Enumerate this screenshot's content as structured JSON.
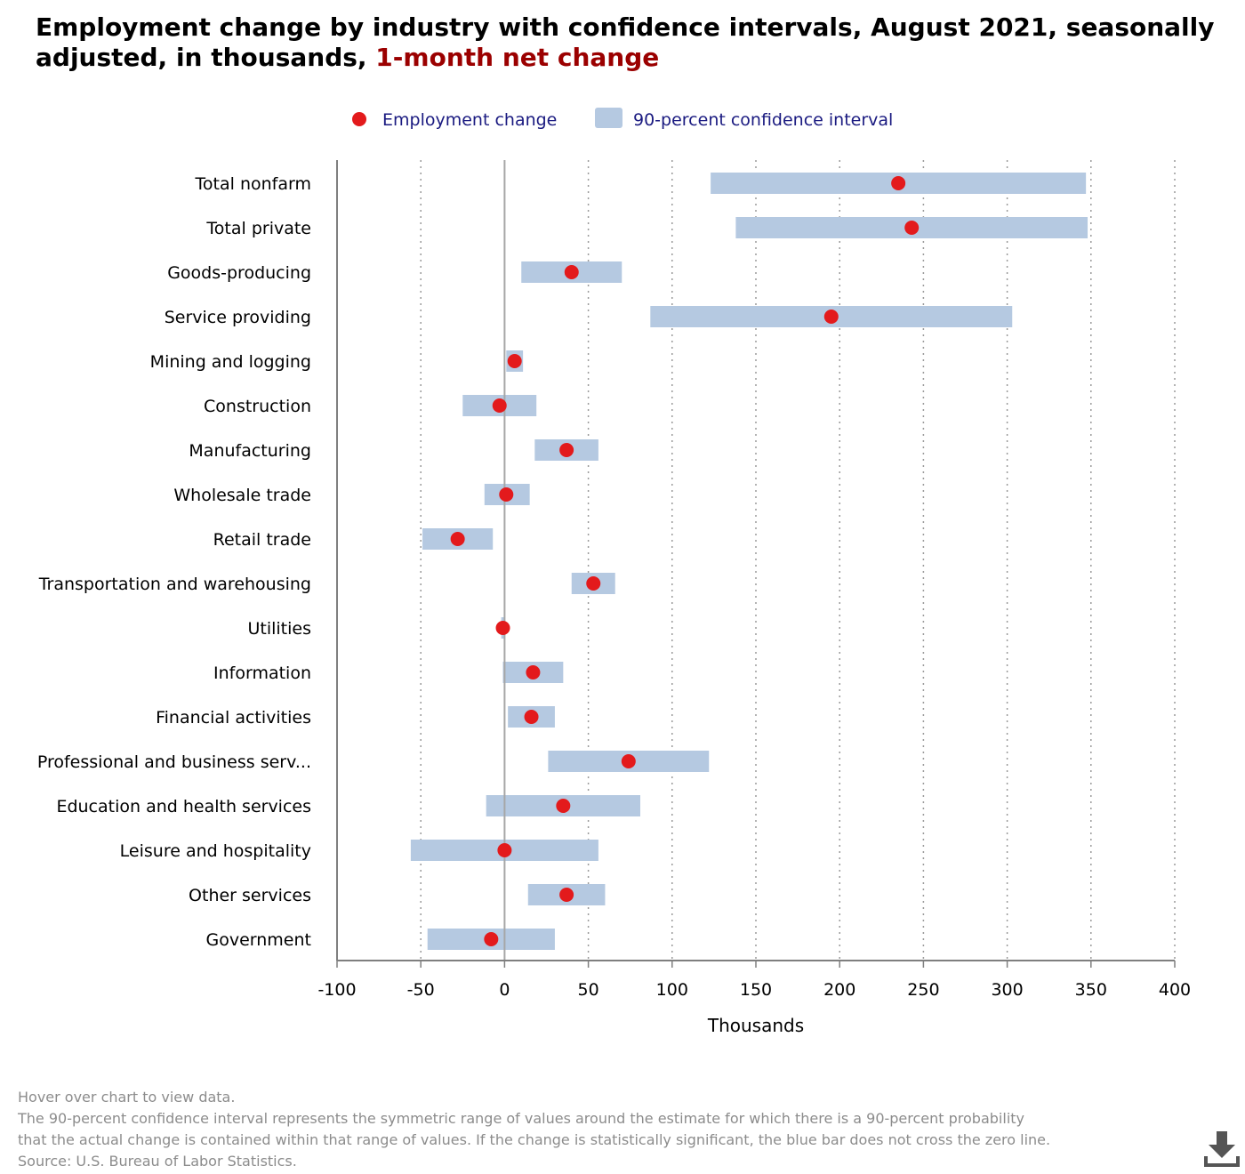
{
  "title": {
    "main": "Employment change by industry with confidence intervals, August 2021, seasonally adjusted, in thousands, ",
    "highlight": "1-month net change"
  },
  "colors": {
    "point": "#e31a1c",
    "interval": "#b5c9e1",
    "legend_text": "#1a1a80",
    "title_highlight": "#9b0000",
    "footer_text": "#8c8c8c"
  },
  "chart_data": {
    "type": "scatter",
    "orientation": "horizontal",
    "categories": [
      "Total nonfarm",
      "Total private",
      "Goods-producing",
      "Service providing",
      "Mining and logging",
      "Construction",
      "Manufacturing",
      "Wholesale trade",
      "Retail trade",
      "Transportation and warehousing",
      "Utilities",
      "Information",
      "Financial activities",
      "Professional and business serv...",
      "Education and health services",
      "Leisure and hospitality",
      "Other services",
      "Government"
    ],
    "series": [
      {
        "name": "Employment change",
        "values": [
          235,
          243,
          40,
          195,
          6,
          -3,
          37,
          1,
          -28,
          53,
          -1,
          17,
          16,
          74,
          35,
          0,
          37,
          -8
        ]
      },
      {
        "name": "90-percent confidence interval",
        "low": [
          123,
          138,
          10,
          87,
          1,
          -25,
          18,
          -12,
          -49,
          40,
          -2,
          -1,
          2,
          26,
          -11,
          -56,
          14,
          -46
        ],
        "high": [
          347,
          348,
          70,
          303,
          11,
          19,
          56,
          15,
          -7,
          66,
          0,
          35,
          30,
          122,
          81,
          56,
          60,
          30
        ]
      }
    ],
    "xlabel": "Thousands",
    "xlim": [
      -100,
      400
    ],
    "xticks": [
      -100,
      -50,
      0,
      50,
      100,
      150,
      200,
      250,
      300,
      350,
      400
    ],
    "xgrid": "dotted",
    "legend_position": "top-center"
  },
  "footer": {
    "hover_note": "Hover over chart to view data.",
    "note_line1": "The 90-percent confidence interval represents the symmetric range of values around the estimate for which there is a 90-percent probability",
    "note_line2": "that the actual change is contained within that range of values. If the change is statistically significant, the blue bar does not cross the zero line.",
    "source": "Source: U.S. Bureau of Labor Statistics."
  },
  "download_icon": "download-icon"
}
